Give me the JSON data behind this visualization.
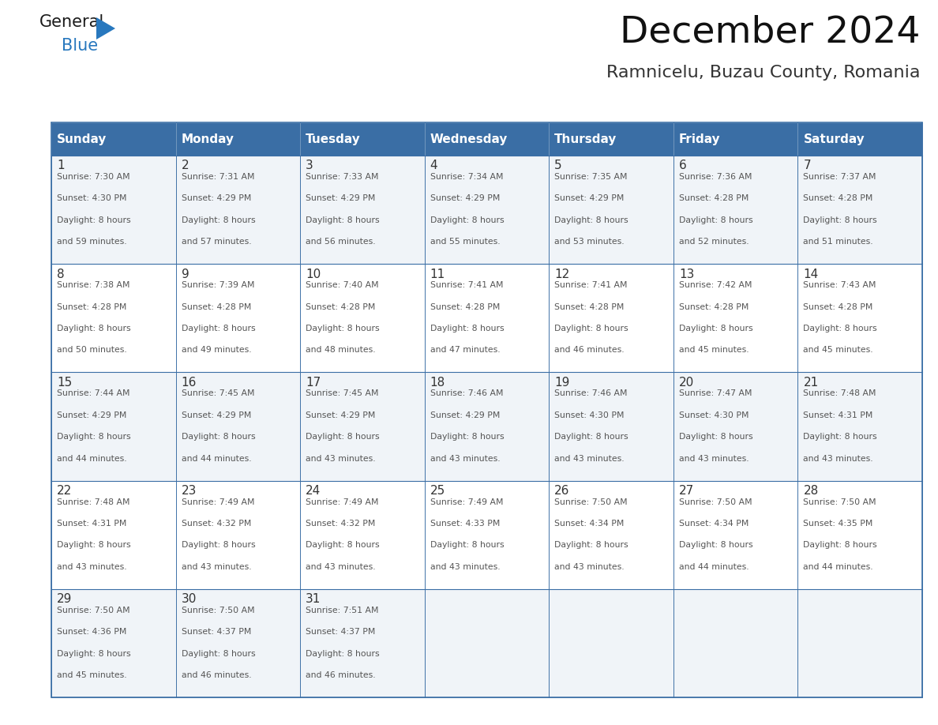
{
  "title": "December 2024",
  "subtitle": "Ramnicelu, Buzau County, Romania",
  "days_of_week": [
    "Sunday",
    "Monday",
    "Tuesday",
    "Wednesday",
    "Thursday",
    "Friday",
    "Saturday"
  ],
  "header_bg": "#3a6ea5",
  "header_text_color": "#ffffff",
  "cell_bg_even": "#f0f4f8",
  "cell_bg_odd": "#ffffff",
  "border_color": "#3a6ea5",
  "title_color": "#111111",
  "subtitle_color": "#333333",
  "day_number_color": "#333333",
  "cell_text_color": "#555555",
  "logo_general_color": "#1a1a1a",
  "logo_blue_color": "#2878be",
  "calendar_data": [
    [
      {
        "day": 1,
        "sunrise": "7:30 AM",
        "sunset": "4:30 PM",
        "daylight_extra": "59 minutes."
      },
      {
        "day": 2,
        "sunrise": "7:31 AM",
        "sunset": "4:29 PM",
        "daylight_extra": "57 minutes."
      },
      {
        "day": 3,
        "sunrise": "7:33 AM",
        "sunset": "4:29 PM",
        "daylight_extra": "56 minutes."
      },
      {
        "day": 4,
        "sunrise": "7:34 AM",
        "sunset": "4:29 PM",
        "daylight_extra": "55 minutes."
      },
      {
        "day": 5,
        "sunrise": "7:35 AM",
        "sunset": "4:29 PM",
        "daylight_extra": "53 minutes."
      },
      {
        "day": 6,
        "sunrise": "7:36 AM",
        "sunset": "4:28 PM",
        "daylight_extra": "52 minutes."
      },
      {
        "day": 7,
        "sunrise": "7:37 AM",
        "sunset": "4:28 PM",
        "daylight_extra": "51 minutes."
      }
    ],
    [
      {
        "day": 8,
        "sunrise": "7:38 AM",
        "sunset": "4:28 PM",
        "daylight_extra": "50 minutes."
      },
      {
        "day": 9,
        "sunrise": "7:39 AM",
        "sunset": "4:28 PM",
        "daylight_extra": "49 minutes."
      },
      {
        "day": 10,
        "sunrise": "7:40 AM",
        "sunset": "4:28 PM",
        "daylight_extra": "48 minutes."
      },
      {
        "day": 11,
        "sunrise": "7:41 AM",
        "sunset": "4:28 PM",
        "daylight_extra": "47 minutes."
      },
      {
        "day": 12,
        "sunrise": "7:41 AM",
        "sunset": "4:28 PM",
        "daylight_extra": "46 minutes."
      },
      {
        "day": 13,
        "sunrise": "7:42 AM",
        "sunset": "4:28 PM",
        "daylight_extra": "45 minutes."
      },
      {
        "day": 14,
        "sunrise": "7:43 AM",
        "sunset": "4:28 PM",
        "daylight_extra": "45 minutes."
      }
    ],
    [
      {
        "day": 15,
        "sunrise": "7:44 AM",
        "sunset": "4:29 PM",
        "daylight_extra": "44 minutes."
      },
      {
        "day": 16,
        "sunrise": "7:45 AM",
        "sunset": "4:29 PM",
        "daylight_extra": "44 minutes."
      },
      {
        "day": 17,
        "sunrise": "7:45 AM",
        "sunset": "4:29 PM",
        "daylight_extra": "43 minutes."
      },
      {
        "day": 18,
        "sunrise": "7:46 AM",
        "sunset": "4:29 PM",
        "daylight_extra": "43 minutes."
      },
      {
        "day": 19,
        "sunrise": "7:46 AM",
        "sunset": "4:30 PM",
        "daylight_extra": "43 minutes."
      },
      {
        "day": 20,
        "sunrise": "7:47 AM",
        "sunset": "4:30 PM",
        "daylight_extra": "43 minutes."
      },
      {
        "day": 21,
        "sunrise": "7:48 AM",
        "sunset": "4:31 PM",
        "daylight_extra": "43 minutes."
      }
    ],
    [
      {
        "day": 22,
        "sunrise": "7:48 AM",
        "sunset": "4:31 PM",
        "daylight_extra": "43 minutes."
      },
      {
        "day": 23,
        "sunrise": "7:49 AM",
        "sunset": "4:32 PM",
        "daylight_extra": "43 minutes."
      },
      {
        "day": 24,
        "sunrise": "7:49 AM",
        "sunset": "4:32 PM",
        "daylight_extra": "43 minutes."
      },
      {
        "day": 25,
        "sunrise": "7:49 AM",
        "sunset": "4:33 PM",
        "daylight_extra": "43 minutes."
      },
      {
        "day": 26,
        "sunrise": "7:50 AM",
        "sunset": "4:34 PM",
        "daylight_extra": "43 minutes."
      },
      {
        "day": 27,
        "sunrise": "7:50 AM",
        "sunset": "4:34 PM",
        "daylight_extra": "44 minutes."
      },
      {
        "day": 28,
        "sunrise": "7:50 AM",
        "sunset": "4:35 PM",
        "daylight_extra": "44 minutes."
      }
    ],
    [
      {
        "day": 29,
        "sunrise": "7:50 AM",
        "sunset": "4:36 PM",
        "daylight_extra": "45 minutes."
      },
      {
        "day": 30,
        "sunrise": "7:50 AM",
        "sunset": "4:37 PM",
        "daylight_extra": "46 minutes."
      },
      {
        "day": 31,
        "sunrise": "7:51 AM",
        "sunset": "4:37 PM",
        "daylight_extra": "46 minutes."
      },
      null,
      null,
      null,
      null
    ]
  ]
}
